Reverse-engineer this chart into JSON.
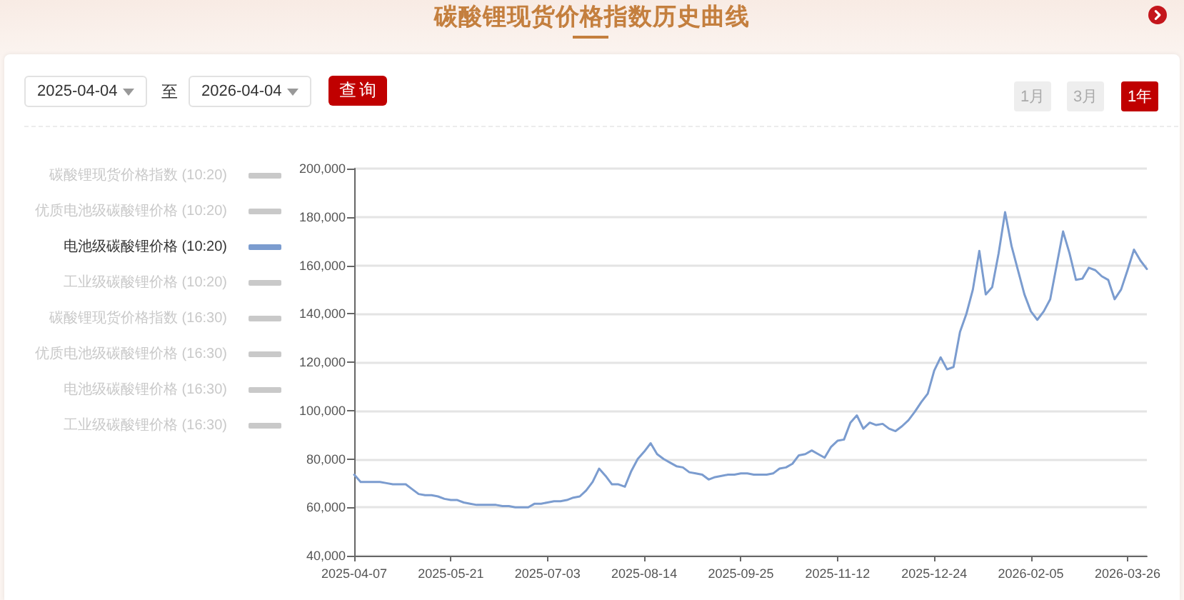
{
  "chart_data": {
    "type": "line",
    "title": "碳酸锂现货价格指数历史曲线",
    "annotations": [
      "2025-04-04",
      "至",
      "2026-04-04",
      "查询",
      "1月",
      "3月",
      "1年"
    ],
    "categories": [
      "2025-04-07",
      null,
      null,
      null,
      null,
      null,
      null,
      null,
      null,
      null,
      null,
      null,
      null,
      null,
      null,
      "2025-05-21",
      null,
      null,
      null,
      null,
      null,
      null,
      null,
      null,
      null,
      null,
      null,
      null,
      null,
      null,
      "2025-07-03",
      null,
      null,
      null,
      null,
      null,
      null,
      null,
      null,
      null,
      null,
      null,
      null,
      null,
      null,
      "2025-08-14",
      null,
      null,
      null,
      null,
      null,
      null,
      null,
      null,
      null,
      null,
      null,
      null,
      null,
      null,
      "2025-09-25",
      null,
      null,
      null,
      null,
      null,
      null,
      null,
      null,
      null,
      null,
      null,
      null,
      null,
      null,
      "2025-11-12",
      null,
      null,
      null,
      null,
      null,
      null,
      null,
      null,
      null,
      null,
      null,
      null,
      null,
      null,
      "2025-12-24",
      null,
      null,
      null,
      null,
      null,
      null,
      null,
      null,
      null,
      null,
      null,
      null,
      null,
      null,
      "2026-02-05",
      null,
      null,
      null,
      null,
      null,
      null,
      null,
      null,
      null,
      null,
      null,
      null,
      null,
      null,
      "2026-03-26",
      null,
      null,
      null
    ],
    "series": [
      {
        "name": "碳酸锂现货价格指数 (10:20)",
        "values": [
          null,
          null,
          null,
          null,
          null,
          null,
          null,
          null,
          null,
          null,
          null,
          null,
          null,
          null,
          null,
          null,
          null,
          null,
          null,
          null,
          null,
          null,
          null,
          null,
          null,
          null,
          null,
          null,
          null,
          null,
          null,
          null,
          null,
          null,
          null,
          null,
          null,
          null,
          null,
          null,
          null,
          null,
          null,
          null,
          null,
          null,
          null,
          null,
          null,
          null,
          null,
          null,
          null,
          null,
          null,
          null,
          null,
          null,
          null,
          null,
          null,
          null,
          null,
          null,
          null,
          null,
          null,
          null,
          null,
          null,
          null,
          null,
          null,
          null,
          null,
          null,
          null,
          null,
          null,
          null,
          null,
          null,
          null,
          null,
          null,
          null,
          null,
          null,
          null,
          null,
          null,
          null,
          null,
          null,
          null,
          null,
          null,
          null,
          null,
          null,
          null,
          null,
          null,
          null,
          null,
          null,
          null,
          null,
          null,
          null,
          null,
          null,
          null,
          null,
          null,
          null,
          null,
          null,
          null,
          null,
          null,
          null,
          null,
          null
        ]
      },
      {
        "name": "优质电池级碳酸锂价格 (10:20)",
        "values": [
          null,
          null,
          null,
          null,
          null,
          null,
          null,
          null,
          null,
          null,
          null,
          null,
          null,
          null,
          null,
          null,
          null,
          null,
          null,
          null,
          null,
          null,
          null,
          null,
          null,
          null,
          null,
          null,
          null,
          null,
          null,
          null,
          null,
          null,
          null,
          null,
          null,
          null,
          null,
          null,
          null,
          null,
          null,
          null,
          null,
          null,
          null,
          null,
          null,
          null,
          null,
          null,
          null,
          null,
          null,
          null,
          null,
          null,
          null,
          null,
          null,
          null,
          null,
          null,
          null,
          null,
          null,
          null,
          null,
          null,
          null,
          null,
          null,
          null,
          null,
          null,
          null,
          null,
          null,
          null,
          null,
          null,
          null,
          null,
          null,
          null,
          null,
          null,
          null,
          null,
          null,
          null,
          null,
          null,
          null,
          null,
          null,
          null,
          null,
          null,
          null,
          null,
          null,
          null,
          null,
          null,
          null,
          null,
          null,
          null,
          null,
          null,
          null,
          null,
          null,
          null,
          null,
          null,
          null,
          null,
          null,
          null,
          null,
          null
        ]
      },
      {
        "name": "电池级碳酸锂价格 (10:20)",
        "color": "#7b9ccf",
        "values": [
          73500,
          70500,
          70500,
          70500,
          70500,
          70000,
          69500,
          69500,
          69500,
          67500,
          65500,
          65000,
          65000,
          64500,
          63500,
          63000,
          63000,
          62000,
          61500,
          61000,
          61000,
          61000,
          61000,
          60500,
          60500,
          60000,
          60000,
          60000,
          61500,
          61500,
          62000,
          62500,
          62500,
          63000,
          64000,
          64500,
          67000,
          70500,
          76000,
          73000,
          69500,
          69500,
          68500,
          75000,
          80000,
          83000,
          86500,
          82000,
          80000,
          78500,
          77000,
          76500,
          74500,
          74000,
          73500,
          71500,
          72500,
          73000,
          73500,
          73500,
          74000,
          74000,
          73500,
          73500,
          73500,
          74000,
          76000,
          76500,
          78000,
          81500,
          82000,
          83500,
          82000,
          80500,
          85000,
          87500,
          88000,
          95000,
          98000,
          92500,
          95000,
          94000,
          94500,
          92500,
          91500,
          93500,
          96000,
          99500,
          103500,
          107000,
          116500,
          122000,
          117000,
          118000,
          132500,
          140000,
          150000,
          166000,
          148000,
          151000,
          165000,
          182000,
          168000,
          158000,
          148000,
          141000,
          137500,
          141000,
          146000,
          160000,
          174000,
          165000,
          154000,
          154500,
          159000,
          158000,
          155500,
          154000,
          146000,
          150000,
          158000,
          166500,
          162000,
          158500
        ]
      },
      {
        "name": "工业级碳酸锂价格 (10:20)",
        "values": [
          null,
          null,
          null,
          null,
          null,
          null,
          null,
          null,
          null,
          null,
          null,
          null,
          null,
          null,
          null,
          null,
          null,
          null,
          null,
          null,
          null,
          null,
          null,
          null,
          null,
          null,
          null,
          null,
          null,
          null,
          null,
          null,
          null,
          null,
          null,
          null,
          null,
          null,
          null,
          null,
          null,
          null,
          null,
          null,
          null,
          null,
          null,
          null,
          null,
          null,
          null,
          null,
          null,
          null,
          null,
          null,
          null,
          null,
          null,
          null,
          null,
          null,
          null,
          null,
          null,
          null,
          null,
          null,
          null,
          null,
          null,
          null,
          null,
          null,
          null,
          null,
          null,
          null,
          null,
          null,
          null,
          null,
          null,
          null,
          null,
          null,
          null,
          null,
          null,
          null,
          null,
          null,
          null,
          null,
          null,
          null,
          null,
          null,
          null,
          null,
          null,
          null,
          null,
          null,
          null,
          null,
          null,
          null,
          null,
          null,
          null,
          null,
          null,
          null,
          null,
          null,
          null,
          null,
          null,
          null,
          null,
          null,
          null,
          null
        ]
      },
      {
        "name": "碳酸锂现货价格指数 (16:30)",
        "values": [
          null,
          null,
          null,
          null,
          null,
          null,
          null,
          null,
          null,
          null,
          null,
          null,
          null,
          null,
          null,
          null,
          null,
          null,
          null,
          null,
          null,
          null,
          null,
          null,
          null,
          null,
          null,
          null,
          null,
          null,
          null,
          null,
          null,
          null,
          null,
          null,
          null,
          null,
          null,
          null,
          null,
          null,
          null,
          null,
          null,
          null,
          null,
          null,
          null,
          null,
          null,
          null,
          null,
          null,
          null,
          null,
          null,
          null,
          null,
          null,
          null,
          null,
          null,
          null,
          null,
          null,
          null,
          null,
          null,
          null,
          null,
          null,
          null,
          null,
          null,
          null,
          null,
          null,
          null,
          null,
          null,
          null,
          null,
          null,
          null,
          null,
          null,
          null,
          null,
          null,
          null,
          null,
          null,
          null,
          null,
          null,
          null,
          null,
          null,
          null,
          null,
          null,
          null,
          null,
          null,
          null,
          null,
          null,
          null,
          null,
          null,
          null,
          null,
          null,
          null,
          null,
          null,
          null,
          null,
          null,
          null,
          null,
          null,
          null
        ]
      },
      {
        "name": "优质电池级碳酸锂价格 (16:30)",
        "values": [
          null,
          null,
          null,
          null,
          null,
          null,
          null,
          null,
          null,
          null,
          null,
          null,
          null,
          null,
          null,
          null,
          null,
          null,
          null,
          null,
          null,
          null,
          null,
          null,
          null,
          null,
          null,
          null,
          null,
          null,
          null,
          null,
          null,
          null,
          null,
          null,
          null,
          null,
          null,
          null,
          null,
          null,
          null,
          null,
          null,
          null,
          null,
          null,
          null,
          null,
          null,
          null,
          null,
          null,
          null,
          null,
          null,
          null,
          null,
          null,
          null,
          null,
          null,
          null,
          null,
          null,
          null,
          null,
          null,
          null,
          null,
          null,
          null,
          null,
          null,
          null,
          null,
          null,
          null,
          null,
          null,
          null,
          null,
          null,
          null,
          null,
          null,
          null,
          null,
          null,
          null,
          null,
          null,
          null,
          null,
          null,
          null,
          null,
          null,
          null,
          null,
          null,
          null,
          null,
          null,
          null,
          null,
          null,
          null,
          null,
          null,
          null,
          null,
          null,
          null,
          null,
          null,
          null,
          null,
          null,
          null,
          null,
          null,
          null
        ]
      },
      {
        "name": "电池级碳酸锂价格 (16:30)",
        "values": [
          null,
          null,
          null,
          null,
          null,
          null,
          null,
          null,
          null,
          null,
          null,
          null,
          null,
          null,
          null,
          null,
          null,
          null,
          null,
          null,
          null,
          null,
          null,
          null,
          null,
          null,
          null,
          null,
          null,
          null,
          null,
          null,
          null,
          null,
          null,
          null,
          null,
          null,
          null,
          null,
          null,
          null,
          null,
          null,
          null,
          null,
          null,
          null,
          null,
          null,
          null,
          null,
          null,
          null,
          null,
          null,
          null,
          null,
          null,
          null,
          null,
          null,
          null,
          null,
          null,
          null,
          null,
          null,
          null,
          null,
          null,
          null,
          null,
          null,
          null,
          null,
          null,
          null,
          null,
          null,
          null,
          null,
          null,
          null,
          null,
          null,
          null,
          null,
          null,
          null,
          null,
          null,
          null,
          null,
          null,
          null,
          null,
          null,
          null,
          null,
          null,
          null,
          null,
          null,
          null,
          null,
          null,
          null,
          null,
          null,
          null,
          null,
          null,
          null,
          null,
          null,
          null,
          null,
          null,
          null,
          null,
          null,
          null,
          null
        ]
      },
      {
        "name": "工业级碳酸锂价格 (16:30)",
        "values": [
          null,
          null,
          null,
          null,
          null,
          null,
          null,
          null,
          null,
          null,
          null,
          null,
          null,
          null,
          null,
          null,
          null,
          null,
          null,
          null,
          null,
          null,
          null,
          null,
          null,
          null,
          null,
          null,
          null,
          null,
          null,
          null,
          null,
          null,
          null,
          null,
          null,
          null,
          null,
          null,
          null,
          null,
          null,
          null,
          null,
          null,
          null,
          null,
          null,
          null,
          null,
          null,
          null,
          null,
          null,
          null,
          null,
          null,
          null,
          null,
          null,
          null,
          null,
          null,
          null,
          null,
          null,
          null,
          null,
          null,
          null,
          null,
          null,
          null,
          null,
          null,
          null,
          null,
          null,
          null,
          null,
          null,
          null,
          null,
          null,
          null,
          null,
          null,
          null,
          null,
          null,
          null,
          null,
          null,
          null,
          null,
          null,
          null,
          null,
          null,
          null,
          null,
          null,
          null,
          null,
          null,
          null,
          null,
          null,
          null,
          null,
          null,
          null,
          null,
          null,
          null,
          null,
          null,
          null,
          null,
          null,
          null,
          null,
          null
        ]
      }
    ],
    "ylim": [
      40000,
      200000
    ],
    "yticks": [
      {
        "value": 40000,
        "label": "40,000"
      },
      {
        "value": 60000,
        "label": "60,000"
      },
      {
        "value": 80000,
        "label": "80,000"
      },
      {
        "value": 100000,
        "label": "100,000"
      },
      {
        "value": 120000,
        "label": "120,000"
      },
      {
        "value": 140000,
        "label": "140,000"
      },
      {
        "value": 160000,
        "label": "160,000"
      },
      {
        "value": 180000,
        "label": "180,000"
      },
      {
        "value": 200000,
        "label": "200,000"
      }
    ],
    "grid": "y",
    "legend": "left",
    "marker": "none"
  }
}
